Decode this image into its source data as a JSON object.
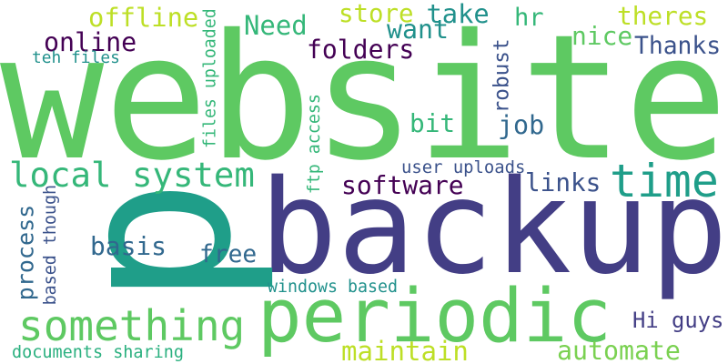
{
  "words": [
    {
      "id": "website",
      "text": "website",
      "color": "#5ec962",
      "rotated": false
    },
    {
      "id": "backup",
      "text": "backup",
      "color": "#433e85",
      "rotated": false
    },
    {
      "id": "p",
      "text": "p",
      "color": "#1f9e89",
      "rotated": true
    },
    {
      "id": "periodic",
      "text": "periodic",
      "color": "#5ec962",
      "rotated": false
    },
    {
      "id": "something",
      "text": "something",
      "color": "#5ec962",
      "rotated": false
    },
    {
      "id": "local_system",
      "text": "local system",
      "color": "#35b779",
      "rotated": false
    },
    {
      "id": "time",
      "text": "time",
      "color": "#1f9e89",
      "rotated": false
    },
    {
      "id": "offline",
      "text": "offline",
      "color": "#bddf26",
      "rotated": false
    },
    {
      "id": "online",
      "text": "online",
      "color": "#440154",
      "rotated": false
    },
    {
      "id": "teh_files",
      "text": "teh files",
      "color": "#21918c",
      "rotated": false
    },
    {
      "id": "files_uploaded",
      "text": "files uploaded",
      "color": "#35b779",
      "rotated": true
    },
    {
      "id": "need",
      "text": "Need",
      "color": "#35b779",
      "rotated": false
    },
    {
      "id": "store",
      "text": "store",
      "color": "#bddf26",
      "rotated": false
    },
    {
      "id": "take",
      "text": "take",
      "color": "#21918c",
      "rotated": false
    },
    {
      "id": "want",
      "text": "want",
      "color": "#21918c",
      "rotated": false
    },
    {
      "id": "folders",
      "text": "folders",
      "color": "#440154",
      "rotated": false
    },
    {
      "id": "hr",
      "text": "hr",
      "color": "#35b779",
      "rotated": false
    },
    {
      "id": "theres",
      "text": "theres",
      "color": "#bddf26",
      "rotated": false
    },
    {
      "id": "nice",
      "text": "nice",
      "color": "#5ec962",
      "rotated": false
    },
    {
      "id": "thanks",
      "text": "Thanks",
      "color": "#3b528b",
      "rotated": false
    },
    {
      "id": "robust",
      "text": "robust",
      "color": "#3b528b",
      "rotated": true
    },
    {
      "id": "job",
      "text": "job",
      "color": "#31688e",
      "rotated": false
    },
    {
      "id": "bit",
      "text": "bit",
      "color": "#35b779",
      "rotated": false
    },
    {
      "id": "ftp_access",
      "text": "ftp access",
      "color": "#35b779",
      "rotated": true
    },
    {
      "id": "software",
      "text": "software",
      "color": "#440154",
      "rotated": false
    },
    {
      "id": "links",
      "text": "links",
      "color": "#3b528b",
      "rotated": false
    },
    {
      "id": "user_uploads",
      "text": "user uploads",
      "color": "#3b528b",
      "rotated": false
    },
    {
      "id": "process",
      "text": "process",
      "color": "#31688e",
      "rotated": true
    },
    {
      "id": "based_though",
      "text": "based though",
      "color": "#3b528b",
      "rotated": true
    },
    {
      "id": "basis",
      "text": "basis",
      "color": "#31688e",
      "rotated": false
    },
    {
      "id": "free",
      "text": "free",
      "color": "#31688e",
      "rotated": false
    },
    {
      "id": "windows_based",
      "text": "windows based",
      "color": "#21918c",
      "rotated": false
    },
    {
      "id": "hi_guys",
      "text": "Hi guys",
      "color": "#433e85",
      "rotated": false
    },
    {
      "id": "maintain",
      "text": "maintain",
      "color": "#bddf26",
      "rotated": false
    },
    {
      "id": "automate",
      "text": "automate",
      "color": "#7ad151",
      "rotated": false
    },
    {
      "id": "documents_sharing",
      "text": "documents sharing",
      "color": "#2ab07f",
      "rotated": false
    }
  ]
}
